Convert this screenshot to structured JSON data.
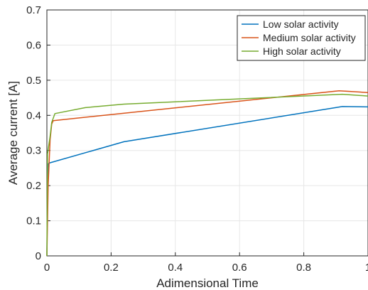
{
  "chart_data": {
    "type": "line",
    "xlabel": "Adimensional Time",
    "ylabel": "Average current [A]",
    "xlim": [
      0,
      1
    ],
    "ylim": [
      0,
      0.7
    ],
    "x_ticks": [
      "0",
      "0.2",
      "0.4",
      "0.6",
      "0.8",
      "1"
    ],
    "y_ticks": [
      "0",
      "0.1",
      "0.2",
      "0.3",
      "0.4",
      "0.5",
      "0.6",
      "0.7"
    ],
    "grid": true,
    "legend_position": "top-right",
    "series": [
      {
        "name": "Low solar activity",
        "color": "#0072BD",
        "x": [
          0,
          0.002,
          0.004,
          0.01,
          0.24,
          0.92,
          1.0
        ],
        "y": [
          0,
          0.2,
          0.262,
          0.265,
          0.325,
          0.425,
          0.424
        ]
      },
      {
        "name": "Medium solar activity",
        "color": "#D95319",
        "x": [
          0,
          0.004,
          0.01,
          0.015,
          0.02,
          0.91,
          1.0
        ],
        "y": [
          0,
          0.2,
          0.33,
          0.375,
          0.385,
          0.47,
          0.465
        ]
      },
      {
        "name": "High solar activity",
        "color": "#77AC30",
        "x": [
          0,
          0.002,
          0.005,
          0.01,
          0.015,
          0.025,
          0.12,
          0.24,
          0.6,
          0.92,
          1.0
        ],
        "y": [
          0,
          0.29,
          0.31,
          0.34,
          0.38,
          0.405,
          0.422,
          0.432,
          0.447,
          0.46,
          0.455
        ]
      }
    ]
  }
}
